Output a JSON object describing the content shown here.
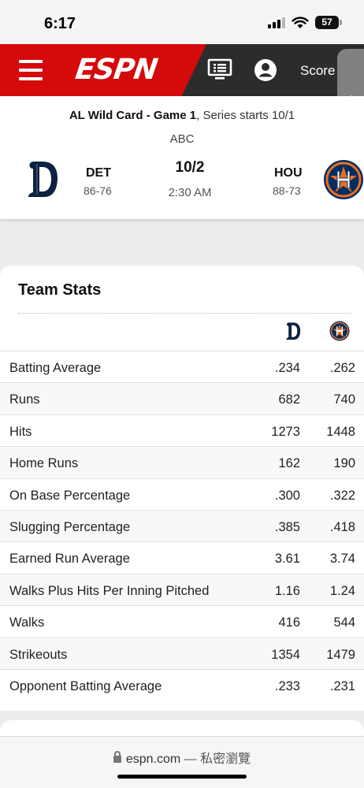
{
  "status_bar": {
    "time": "6:17",
    "battery": "57"
  },
  "header": {
    "logo_text": "ESPN",
    "scores_label": "Score"
  },
  "game": {
    "series_bold": "AL Wild Card - Game 1",
    "series_rest": ", Series starts 10/1",
    "network": "ABC",
    "date": "10/2",
    "time": "2:30 AM",
    "away": {
      "abbr": "DET",
      "record": "86-76"
    },
    "home": {
      "abbr": "HOU",
      "record": "88-73"
    }
  },
  "team_stats": {
    "title": "Team Stats",
    "rows": [
      {
        "label": "Batting Average",
        "det": ".234",
        "hou": ".262"
      },
      {
        "label": "Runs",
        "det": "682",
        "hou": "740"
      },
      {
        "label": "Hits",
        "det": "1273",
        "hou": "1448"
      },
      {
        "label": "Home Runs",
        "det": "162",
        "hou": "190"
      },
      {
        "label": "On Base Percentage",
        "det": ".300",
        "hou": ".322"
      },
      {
        "label": "Slugging Percentage",
        "det": ".385",
        "hou": ".418"
      },
      {
        "label": "Earned Run Average",
        "det": "3.61",
        "hou": "3.74"
      },
      {
        "label": "Walks Plus Hits Per Inning Pitched",
        "det": "1.16",
        "hou": "1.24"
      },
      {
        "label": "Walks",
        "det": "416",
        "hou": "544"
      },
      {
        "label": "Strikeouts",
        "det": "1354",
        "hou": "1479"
      },
      {
        "label": "Opponent Batting Average",
        "det": ".233",
        "hou": ".231"
      }
    ]
  },
  "url_bar": {
    "domain": "espn.com",
    "suffix": " — 私密瀏覽"
  },
  "colors": {
    "espn_red": "#d50a0a",
    "header_dark": "#2b2c2d",
    "tigers_navy": "#0c2340",
    "astros_navy": "#002d62",
    "astros_orange": "#eb6e1f"
  }
}
